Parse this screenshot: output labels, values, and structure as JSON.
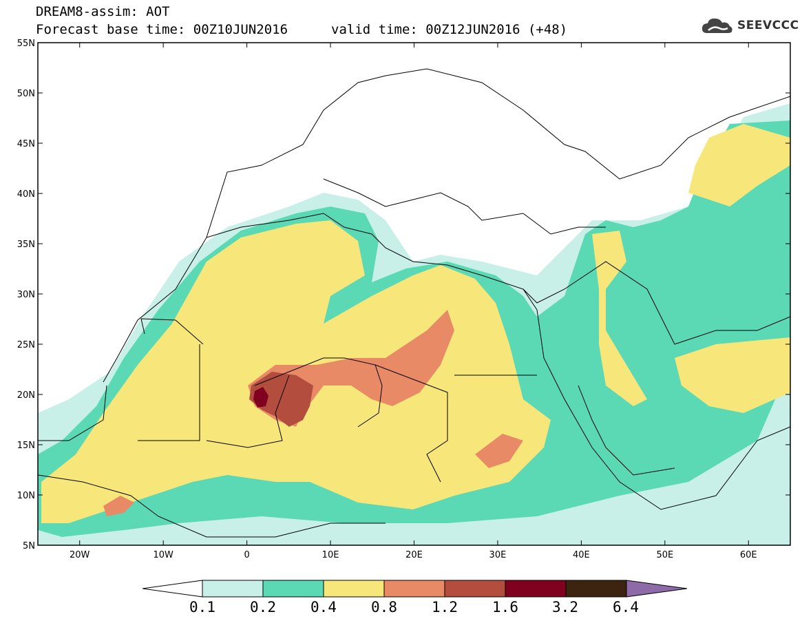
{
  "header": {
    "title": "DREAM8-assim: AOT",
    "base_time": "Forecast base time: 00Z10JUN2016",
    "valid_time": "valid time: 00Z12JUN2016 (+48)"
  },
  "logo": {
    "text": "SEEVCCC",
    "icon": "cloud-logo-icon"
  },
  "map": {
    "lon_range": [
      -25,
      65
    ],
    "lat_range": [
      5,
      55
    ],
    "lon_ticks": [
      "20W",
      "10W",
      "0",
      "10E",
      "20E",
      "30E",
      "40E",
      "50E",
      "60E"
    ],
    "lat_ticks": [
      "55N",
      "50N",
      "45N",
      "40N",
      "35N",
      "30N",
      "25N",
      "20N",
      "15N",
      "10N",
      "5N"
    ]
  },
  "colorbar": {
    "labels": [
      "0.1",
      "0.2",
      "0.4",
      "0.8",
      "1.2",
      "1.6",
      "3.2",
      "6.4"
    ],
    "colors": [
      "#ffffff",
      "#c8f0e8",
      "#5ad9b4",
      "#f7e67a",
      "#e88a66",
      "#b34e3e",
      "#800020",
      "#3d2410",
      "#8f6aa8"
    ]
  }
}
